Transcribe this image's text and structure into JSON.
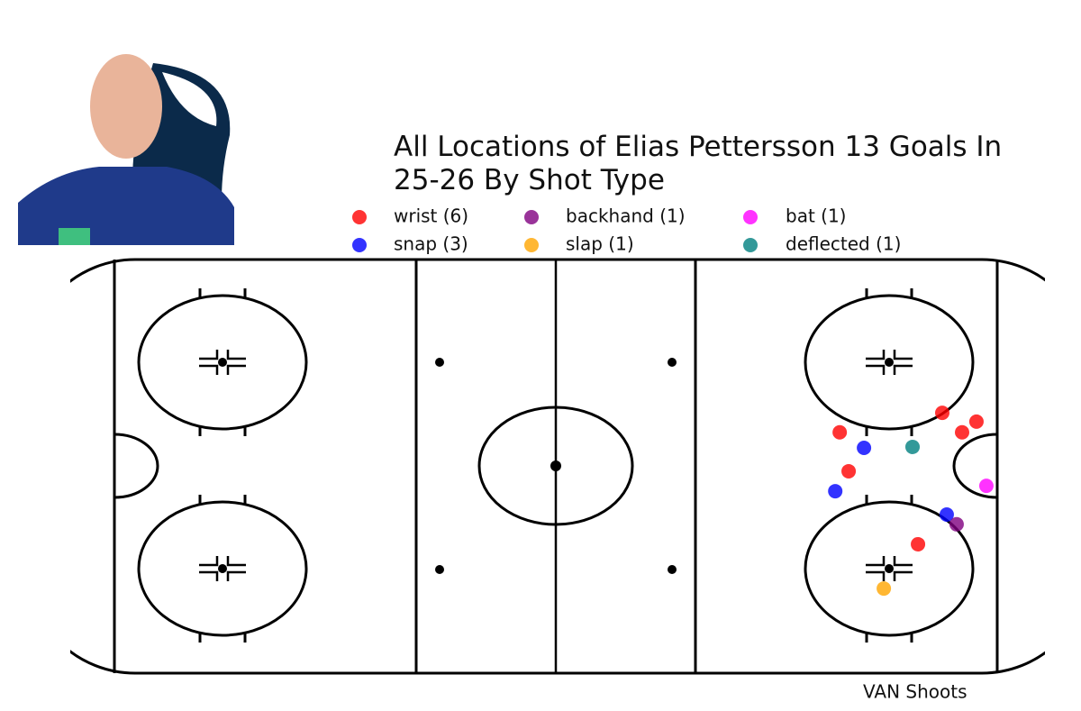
{
  "chart_data": {
    "type": "scatter",
    "title": "All Locations of Elias Pettersson 13 Goals In 25-26 By Shot Type",
    "annotation": "VAN Shoots",
    "xlim": [
      -100,
      100
    ],
    "ylim": [
      -42.5,
      42.5
    ],
    "series": [
      {
        "name": "wrist (6)",
        "color": "#ff0000",
        "x": [
          78,
          84.9,
          82,
          57.3,
          59.1,
          73.1
        ],
        "values": [
          10.9,
          9.1,
          6.9,
          6.9,
          -1.1,
          -16.1
        ]
      },
      {
        "name": "snap (3)",
        "color": "#0000ff",
        "x": [
          62.2,
          56.4,
          78.9
        ],
        "values": [
          3.7,
          -5.2,
          -10
        ]
      },
      {
        "name": "backhand (1)",
        "color": "#800080",
        "x": [
          80.9
        ],
        "values": [
          -12
        ]
      },
      {
        "name": "slap (1)",
        "color": "#ffa500",
        "x": [
          66.2
        ],
        "values": [
          -25.2
        ]
      },
      {
        "name": "bat (1)",
        "color": "#ff00ff",
        "x": [
          86.9
        ],
        "values": [
          -4.1
        ]
      },
      {
        "name": "deflected (1)",
        "color": "#008080",
        "x": [
          72
        ],
        "values": [
          3.9
        ]
      }
    ]
  }
}
